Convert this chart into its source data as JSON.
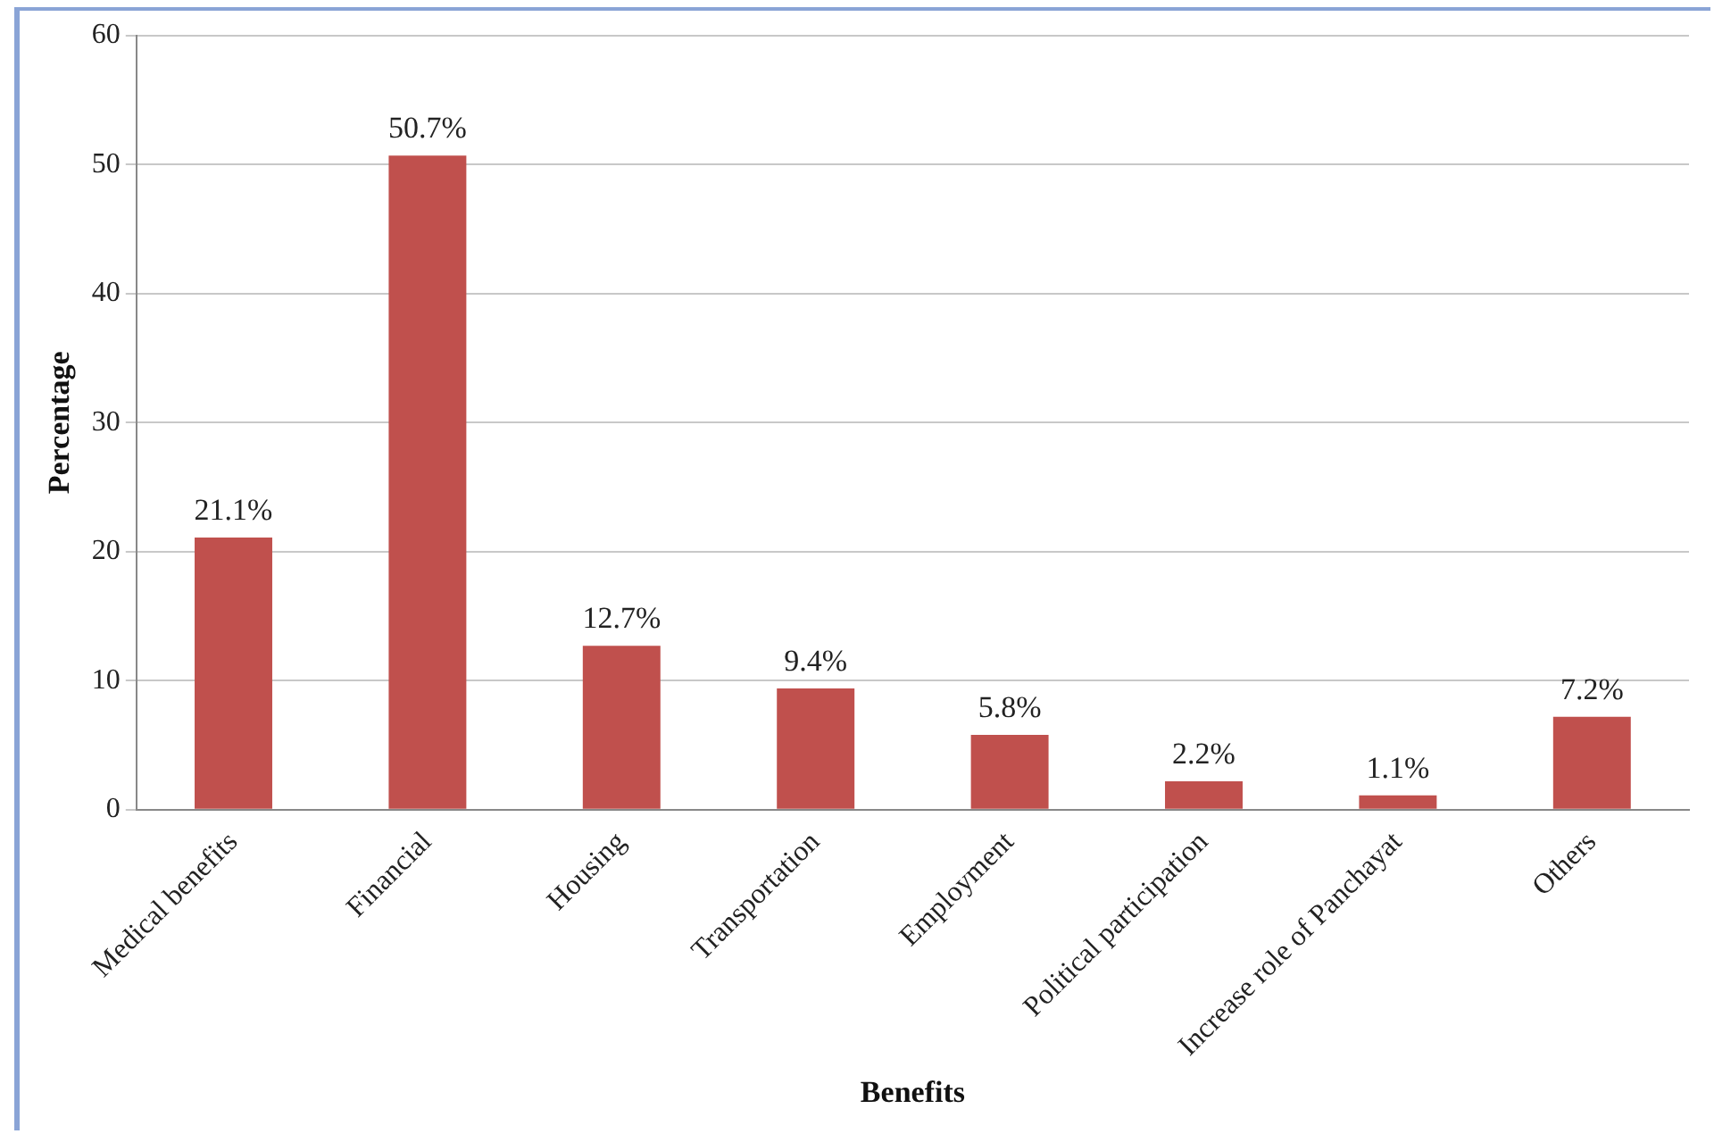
{
  "chart_data": {
    "type": "bar",
    "xlabel": "Benefits",
    "ylabel": "Percentage",
    "categories": [
      "Medical benefits",
      "Financial",
      "Housing",
      "Transportation",
      "Employment",
      "Political participation",
      "Increase role of Panchayat",
      "Others"
    ],
    "values": [
      21.1,
      50.7,
      12.7,
      9.4,
      5.8,
      2.2,
      1.1,
      7.2
    ],
    "value_labels": [
      "21.1%",
      "50.7%",
      "12.7%",
      "9.4%",
      "5.8%",
      "2.2%",
      "1.1%",
      "7.2%"
    ],
    "color": "#c0504d",
    "ylim": [
      0,
      60
    ],
    "yticks": [
      0,
      10,
      20,
      30,
      40,
      50,
      60
    ],
    "grid": "y"
  }
}
